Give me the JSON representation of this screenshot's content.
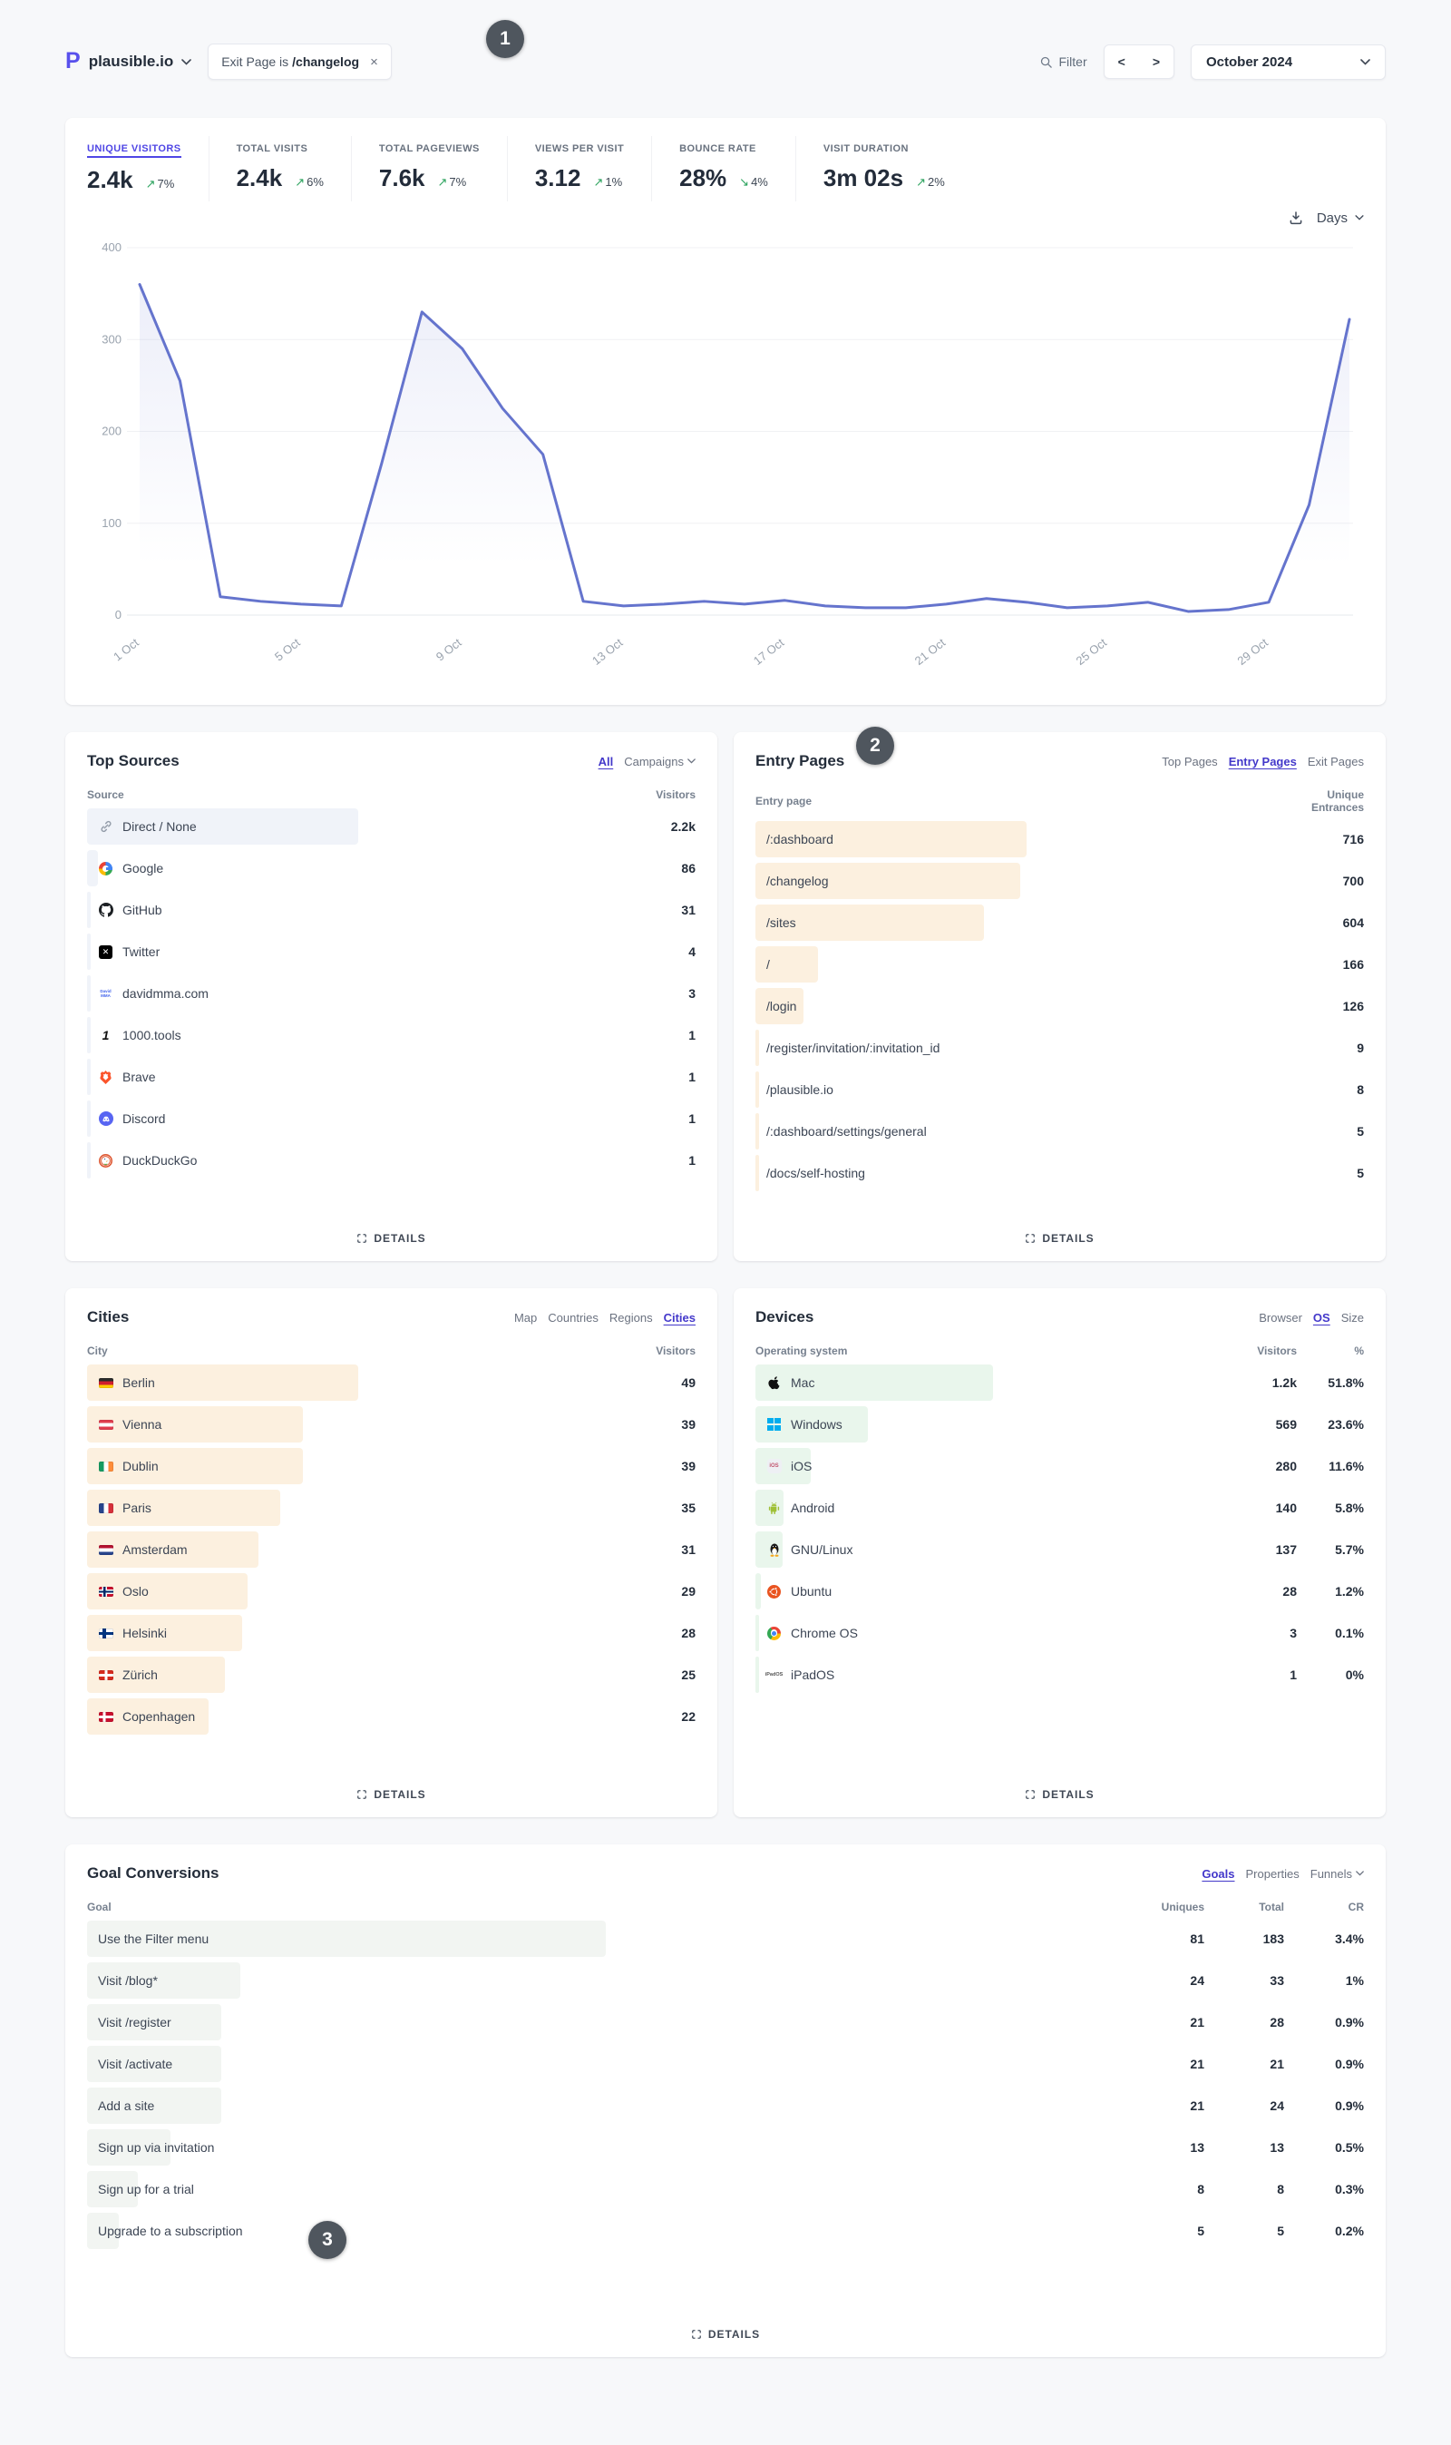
{
  "topbar": {
    "site": "plausible.io",
    "filter_pill": {
      "prefix": "Exit Page is",
      "value": "/changelog",
      "close": "×"
    },
    "filter_label": "Filter",
    "prev": "<",
    "next": ">",
    "period": "October 2024"
  },
  "annotations": [
    "1",
    "2",
    "3"
  ],
  "stats": [
    {
      "label": "UNIQUE VISITORS",
      "value": "2.4k",
      "delta": "7%",
      "dir": "up",
      "active": true
    },
    {
      "label": "TOTAL VISITS",
      "value": "2.4k",
      "delta": "6%",
      "dir": "up",
      "active": false
    },
    {
      "label": "TOTAL PAGEVIEWS",
      "value": "7.6k",
      "delta": "7%",
      "dir": "up",
      "active": false
    },
    {
      "label": "VIEWS PER VISIT",
      "value": "3.12",
      "delta": "1%",
      "dir": "up",
      "active": false
    },
    {
      "label": "BOUNCE RATE",
      "value": "28%",
      "delta": "4%",
      "dir": "down",
      "active": false
    },
    {
      "label": "VISIT DURATION",
      "value": "3m 02s",
      "delta": "2%",
      "dir": "up",
      "active": false
    }
  ],
  "interval": {
    "label": "Days"
  },
  "chart_data": {
    "type": "line",
    "title": "Unique visitors by day, October 2024",
    "x": [
      1,
      2,
      3,
      4,
      5,
      6,
      7,
      8,
      9,
      10,
      11,
      12,
      13,
      14,
      15,
      16,
      17,
      18,
      19,
      20,
      21,
      22,
      23,
      24,
      25,
      26,
      27,
      28,
      29,
      30,
      31
    ],
    "values": [
      360,
      255,
      20,
      15,
      12,
      10,
      165,
      330,
      290,
      225,
      175,
      15,
      10,
      12,
      15,
      12,
      16,
      10,
      8,
      8,
      12,
      18,
      14,
      8,
      10,
      14,
      4,
      6,
      14,
      120,
      322
    ],
    "x_tick_days": [
      1,
      5,
      9,
      13,
      17,
      21,
      25,
      29
    ],
    "x_tick_labels": [
      "1 Oct",
      "5 Oct",
      "9 Oct",
      "13 Oct",
      "17 Oct",
      "21 Oct",
      "25 Oct",
      "29 Oct"
    ],
    "y_ticks": [
      0,
      100,
      200,
      300,
      400
    ],
    "ylim": [
      0,
      400
    ],
    "grid": true,
    "legend": false,
    "line_color": "#6574cd",
    "fill_color": "rgba(101,116,205,0.12)"
  },
  "colors": {
    "accent": "#4338ca",
    "delta_green": "#2ca35e",
    "badge_bg": "#4f565e"
  },
  "panels": [
    {
      "id": "sources",
      "title": "Top Sources",
      "tabs": [
        {
          "label": "All",
          "active": true
        },
        {
          "label": "Campaigns",
          "active": false,
          "chevron": true
        }
      ],
      "columns": [
        "Source",
        "Visitors"
      ],
      "bar_color": "#f0f3f9",
      "zone_pct": 88,
      "details_label": "DETAILS",
      "rows": [
        {
          "icon": "link-icon",
          "label": "Direct / None",
          "values": [
            "2.2k"
          ],
          "num": 2200
        },
        {
          "icon": "google-icon",
          "label": "Google",
          "values": [
            "86"
          ],
          "num": 86
        },
        {
          "icon": "github-icon",
          "label": "GitHub",
          "values": [
            "31"
          ],
          "num": 31
        },
        {
          "icon": "twitter-x-icon",
          "label": "Twitter",
          "values": [
            "4"
          ],
          "num": 4
        },
        {
          "icon": "davidmma-icon",
          "label": "davidmma.com",
          "values": [
            "3"
          ],
          "num": 3
        },
        {
          "icon": "1000tools-icon",
          "label": "1000.tools",
          "values": [
            "1"
          ],
          "num": 1
        },
        {
          "icon": "brave-icon",
          "label": "Brave",
          "values": [
            "1"
          ],
          "num": 1
        },
        {
          "icon": "discord-icon",
          "label": "Discord",
          "values": [
            "1"
          ],
          "num": 1
        },
        {
          "icon": "duckduckgo-icon",
          "label": "DuckDuckGo",
          "values": [
            "1"
          ],
          "num": 1
        }
      ]
    },
    {
      "id": "entry-pages",
      "title": "Entry Pages",
      "tabs": [
        {
          "label": "Top Pages",
          "active": false
        },
        {
          "label": "Entry Pages",
          "active": true
        },
        {
          "label": "Exit Pages",
          "active": false
        }
      ],
      "columns": [
        "Entry page",
        "Unique Entrances"
      ],
      "bar_color": "#fcf0df",
      "zone_pct": 88,
      "details_label": "DETAILS",
      "rows": [
        {
          "label": "/:dashboard",
          "values": [
            "716"
          ],
          "num": 716
        },
        {
          "label": "/changelog",
          "values": [
            "700"
          ],
          "num": 700
        },
        {
          "label": "/sites",
          "values": [
            "604"
          ],
          "num": 604
        },
        {
          "label": "/",
          "values": [
            "166"
          ],
          "num": 166
        },
        {
          "label": "/login",
          "values": [
            "126"
          ],
          "num": 126
        },
        {
          "label": "/register/invitation/:invitation_id",
          "values": [
            "9"
          ],
          "num": 9
        },
        {
          "label": "/plausible.io",
          "values": [
            "8"
          ],
          "num": 8
        },
        {
          "label": "/:dashboard/settings/general",
          "values": [
            "5"
          ],
          "num": 5
        },
        {
          "label": "/docs/self-hosting",
          "values": [
            "5"
          ],
          "num": 5
        }
      ]
    },
    {
      "id": "cities",
      "title": "Cities",
      "tabs": [
        {
          "label": "Map",
          "active": false
        },
        {
          "label": "Countries",
          "active": false
        },
        {
          "label": "Regions",
          "active": false
        },
        {
          "label": "Cities",
          "active": true
        }
      ],
      "columns": [
        "City",
        "Visitors"
      ],
      "bar_color": "#fcf0df",
      "zone_pct": 88,
      "details_label": "DETAILS",
      "rows": [
        {
          "icon": "flag-germany-icon",
          "label": "Berlin",
          "values": [
            "49"
          ],
          "num": 49
        },
        {
          "icon": "flag-austria-icon",
          "label": "Vienna",
          "values": [
            "39"
          ],
          "num": 39
        },
        {
          "icon": "flag-ireland-icon",
          "label": "Dublin",
          "values": [
            "39"
          ],
          "num": 39
        },
        {
          "icon": "flag-france-icon",
          "label": "Paris",
          "values": [
            "35"
          ],
          "num": 35
        },
        {
          "icon": "flag-netherlands-icon",
          "label": "Amsterdam",
          "values": [
            "31"
          ],
          "num": 31
        },
        {
          "icon": "flag-norway-icon",
          "label": "Oslo",
          "values": [
            "29"
          ],
          "num": 29
        },
        {
          "icon": "flag-finland-icon",
          "label": "Helsinki",
          "values": [
            "28"
          ],
          "num": 28
        },
        {
          "icon": "flag-switzerland-icon",
          "label": "Zürich",
          "values": [
            "25"
          ],
          "num": 25
        },
        {
          "icon": "flag-denmark-icon",
          "label": "Copenhagen",
          "values": [
            "22"
          ],
          "num": 22
        }
      ]
    },
    {
      "id": "devices",
      "title": "Devices",
      "tabs": [
        {
          "label": "Browser",
          "active": false
        },
        {
          "label": "OS",
          "active": true
        },
        {
          "label": "Size",
          "active": false
        }
      ],
      "columns": [
        "Operating system",
        "Visitors",
        "%"
      ],
      "bar_color": "#e9f6ec",
      "zone_pct": 72,
      "details_label": "DETAILS",
      "rows": [
        {
          "icon": "apple-icon",
          "label": "Mac",
          "values": [
            "1.2k",
            "51.8%"
          ],
          "num": 1200
        },
        {
          "icon": "windows-icon",
          "label": "Windows",
          "values": [
            "569",
            "23.6%"
          ],
          "num": 569
        },
        {
          "icon": "ios-icon",
          "label": "iOS",
          "values": [
            "280",
            "11.6%"
          ],
          "num": 280
        },
        {
          "icon": "android-icon",
          "label": "Android",
          "values": [
            "140",
            "5.8%"
          ],
          "num": 140
        },
        {
          "icon": "linux-tux-icon",
          "label": "GNU/Linux",
          "values": [
            "137",
            "5.7%"
          ],
          "num": 137
        },
        {
          "icon": "ubuntu-icon",
          "label": "Ubuntu",
          "values": [
            "28",
            "1.2%"
          ],
          "num": 28
        },
        {
          "icon": "chrome-icon",
          "label": "Chrome OS",
          "values": [
            "3",
            "0.1%"
          ],
          "num": 3
        },
        {
          "icon": "ipados-icon",
          "label": "iPadOS",
          "values": [
            "1",
            "0%"
          ],
          "num": 1
        }
      ]
    },
    {
      "id": "goals",
      "title": "Goal Conversions",
      "tabs": [
        {
          "label": "Goals",
          "active": true
        },
        {
          "label": "Properties",
          "active": false
        },
        {
          "label": "Funnels",
          "active": false,
          "chevron": true
        }
      ],
      "columns": [
        "Goal",
        "Uniques",
        "Total",
        "CR"
      ],
      "bar_color": "#f2f5f2",
      "zone_pct": 75,
      "details_label": "DETAILS",
      "rows": [
        {
          "label": "Use the Filter menu",
          "values": [
            "81",
            "183",
            "3.4%"
          ],
          "num": 81
        },
        {
          "label": "Visit /blog*",
          "values": [
            "24",
            "33",
            "1%"
          ],
          "num": 24
        },
        {
          "label": "Visit /register",
          "values": [
            "21",
            "28",
            "0.9%"
          ],
          "num": 21
        },
        {
          "label": "Visit /activate",
          "values": [
            "21",
            "21",
            "0.9%"
          ],
          "num": 21
        },
        {
          "label": "Add a site",
          "values": [
            "21",
            "24",
            "0.9%"
          ],
          "num": 21
        },
        {
          "label": "Sign up via invitation",
          "values": [
            "13",
            "13",
            "0.5%"
          ],
          "num": 13
        },
        {
          "label": "Sign up for a trial",
          "values": [
            "8",
            "8",
            "0.3%"
          ],
          "num": 8
        },
        {
          "label": "Upgrade to a subscription",
          "values": [
            "5",
            "5",
            "0.2%"
          ],
          "num": 5
        }
      ]
    }
  ]
}
